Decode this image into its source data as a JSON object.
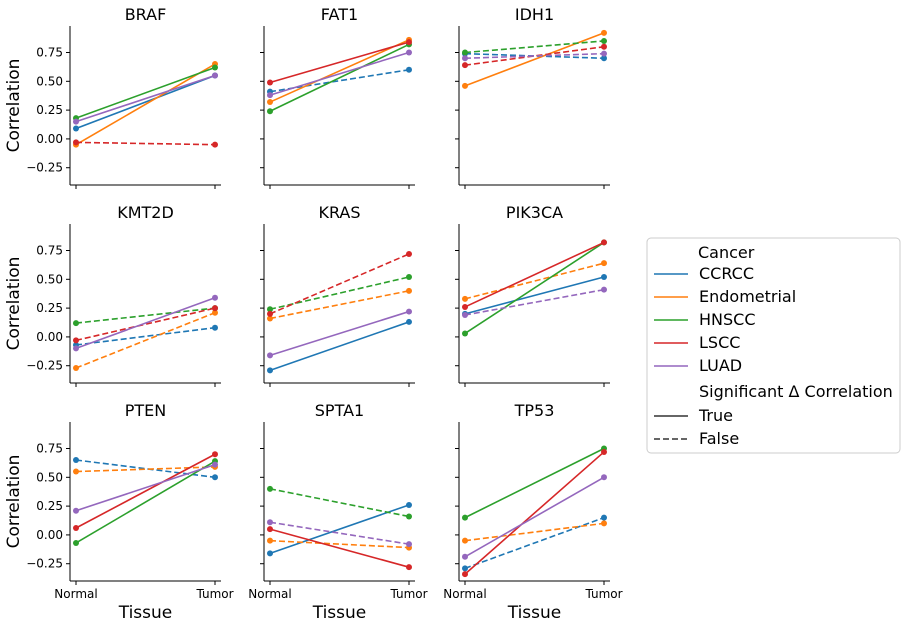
{
  "chart_data": {
    "type": "line",
    "x_categories": [
      "Normal",
      "Tumor"
    ],
    "xlabel": "Tissue",
    "ylabel": "Correlation",
    "ylim": [
      -0.4,
      0.98
    ],
    "yticks": [
      "0.75",
      "0.50",
      "0.25",
      "0.00",
      "−0.25"
    ],
    "ytick_values": [
      0.75,
      0.5,
      0.25,
      0.0,
      -0.25
    ],
    "colors": {
      "CCRCC": "#1f77b4",
      "Endometrial": "#ff7f0e",
      "HNSCC": "#2ca02c",
      "LSCC": "#d62728",
      "LUAD": "#9467bd"
    },
    "legend": {
      "placement": "right",
      "hue_title": "Cancer",
      "hue_entries": [
        "CCRCC",
        "Endometrial",
        "HNSCC",
        "LSCC",
        "LUAD"
      ],
      "style_title": "Significant Δ Correlation",
      "style_entries": [
        {
          "label": "True",
          "dash": "solid"
        },
        {
          "label": "False",
          "dash": "dashed"
        }
      ]
    },
    "panels": [
      {
        "title": "BRAF",
        "series": [
          {
            "cancer": "CCRCC",
            "values": [
              0.09,
              0.55
            ],
            "significant": true
          },
          {
            "cancer": "Endometrial",
            "values": [
              -0.05,
              0.65
            ],
            "significant": true
          },
          {
            "cancer": "HNSCC",
            "values": [
              0.18,
              0.62
            ],
            "significant": true
          },
          {
            "cancer": "LSCC",
            "values": [
              -0.03,
              -0.05
            ],
            "significant": false
          },
          {
            "cancer": "LUAD",
            "values": [
              0.15,
              0.55
            ],
            "significant": true
          }
        ]
      },
      {
        "title": "FAT1",
        "series": [
          {
            "cancer": "CCRCC",
            "values": [
              0.41,
              0.6
            ],
            "significant": false
          },
          {
            "cancer": "Endometrial",
            "values": [
              0.32,
              0.86
            ],
            "significant": true
          },
          {
            "cancer": "HNSCC",
            "values": [
              0.24,
              0.82
            ],
            "significant": true
          },
          {
            "cancer": "LSCC",
            "values": [
              0.49,
              0.84
            ],
            "significant": true
          },
          {
            "cancer": "LUAD",
            "values": [
              0.38,
              0.75
            ],
            "significant": true
          }
        ]
      },
      {
        "title": "IDH1",
        "series": [
          {
            "cancer": "CCRCC",
            "values": [
              0.74,
              0.7
            ],
            "significant": false
          },
          {
            "cancer": "Endometrial",
            "values": [
              0.46,
              0.92
            ],
            "significant": true
          },
          {
            "cancer": "HNSCC",
            "values": [
              0.75,
              0.85
            ],
            "significant": false
          },
          {
            "cancer": "LSCC",
            "values": [
              0.64,
              0.8
            ],
            "significant": false
          },
          {
            "cancer": "LUAD",
            "values": [
              0.7,
              0.74
            ],
            "significant": false
          }
        ]
      },
      {
        "title": "KMT2D",
        "series": [
          {
            "cancer": "CCRCC",
            "values": [
              -0.07,
              0.08
            ],
            "significant": false
          },
          {
            "cancer": "Endometrial",
            "values": [
              -0.27,
              0.21
            ],
            "significant": false
          },
          {
            "cancer": "HNSCC",
            "values": [
              0.12,
              0.25
            ],
            "significant": false
          },
          {
            "cancer": "LSCC",
            "values": [
              -0.03,
              0.25
            ],
            "significant": false
          },
          {
            "cancer": "LUAD",
            "values": [
              -0.1,
              0.34
            ],
            "significant": true
          }
        ]
      },
      {
        "title": "KRAS",
        "series": [
          {
            "cancer": "CCRCC",
            "values": [
              -0.29,
              0.13
            ],
            "significant": true
          },
          {
            "cancer": "Endometrial",
            "values": [
              0.16,
              0.4
            ],
            "significant": false
          },
          {
            "cancer": "HNSCC",
            "values": [
              0.24,
              0.52
            ],
            "significant": false
          },
          {
            "cancer": "LSCC",
            "values": [
              0.2,
              0.72
            ],
            "significant": false
          },
          {
            "cancer": "LUAD",
            "values": [
              -0.16,
              0.22
            ],
            "significant": true
          }
        ]
      },
      {
        "title": "PIK3CA",
        "series": [
          {
            "cancer": "CCRCC",
            "values": [
              0.2,
              0.52
            ],
            "significant": true
          },
          {
            "cancer": "Endometrial",
            "values": [
              0.33,
              0.64
            ],
            "significant": false
          },
          {
            "cancer": "HNSCC",
            "values": [
              0.03,
              0.82
            ],
            "significant": true
          },
          {
            "cancer": "LSCC",
            "values": [
              0.26,
              0.82
            ],
            "significant": true
          },
          {
            "cancer": "LUAD",
            "values": [
              0.19,
              0.41
            ],
            "significant": false
          }
        ]
      },
      {
        "title": "PTEN",
        "series": [
          {
            "cancer": "CCRCC",
            "values": [
              0.65,
              0.5
            ],
            "significant": false
          },
          {
            "cancer": "Endometrial",
            "values": [
              0.55,
              0.59
            ],
            "significant": false
          },
          {
            "cancer": "HNSCC",
            "values": [
              -0.07,
              0.64
            ],
            "significant": true
          },
          {
            "cancer": "LSCC",
            "values": [
              0.06,
              0.7
            ],
            "significant": true
          },
          {
            "cancer": "LUAD",
            "values": [
              0.21,
              0.61
            ],
            "significant": true
          }
        ]
      },
      {
        "title": "SPTA1",
        "series": [
          {
            "cancer": "CCRCC",
            "values": [
              -0.16,
              0.26
            ],
            "significant": true
          },
          {
            "cancer": "Endometrial",
            "values": [
              -0.05,
              -0.11
            ],
            "significant": false
          },
          {
            "cancer": "HNSCC",
            "values": [
              0.4,
              0.16
            ],
            "significant": false
          },
          {
            "cancer": "LSCC",
            "values": [
              0.05,
              -0.28
            ],
            "significant": true
          },
          {
            "cancer": "LUAD",
            "values": [
              0.11,
              -0.08
            ],
            "significant": false
          }
        ]
      },
      {
        "title": "TP53",
        "series": [
          {
            "cancer": "CCRCC",
            "values": [
              -0.29,
              0.15
            ],
            "significant": false
          },
          {
            "cancer": "Endometrial",
            "values": [
              -0.05,
              0.1
            ],
            "significant": false
          },
          {
            "cancer": "HNSCC",
            "values": [
              0.15,
              0.75
            ],
            "significant": true
          },
          {
            "cancer": "LSCC",
            "values": [
              -0.34,
              0.72
            ],
            "significant": true
          },
          {
            "cancer": "LUAD",
            "values": [
              -0.19,
              0.5
            ],
            "significant": true
          }
        ]
      }
    ]
  }
}
